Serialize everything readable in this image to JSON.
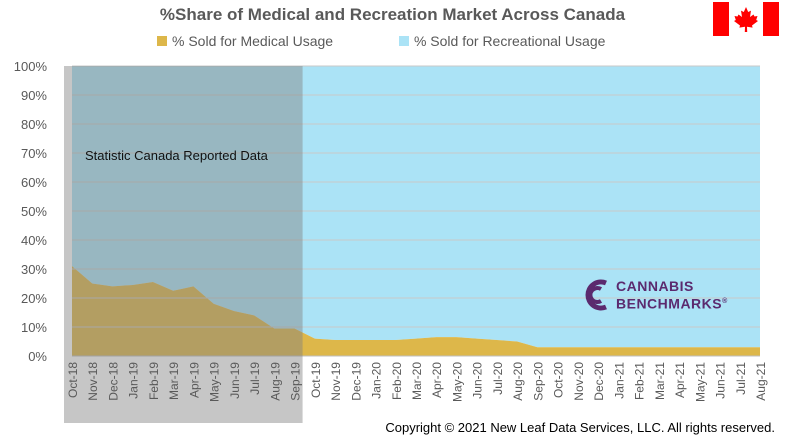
{
  "chart_data": {
    "type": "area",
    "stacked": true,
    "title": "%Share of Medical and Recreation Market Across Canada",
    "categories": [
      "Oct-18",
      "Nov-18",
      "Dec-18",
      "Jan-19",
      "Feb-19",
      "Mar-19",
      "Apr-19",
      "May-19",
      "Jun-19",
      "Jul-19",
      "Aug-19",
      "Sep-19",
      "Oct-19",
      "Nov-19",
      "Dec-19",
      "Jan-20",
      "Feb-20",
      "Mar-20",
      "Apr-20",
      "May-20",
      "Jun-20",
      "Jul-20",
      "Aug-20",
      "Sep-20",
      "Oct-20",
      "Nov-20",
      "Dec-20",
      "Jan-21",
      "Feb-21",
      "Mar-21",
      "Apr-21",
      "May-21",
      "Jun-21",
      "Jul-21",
      "Aug-21"
    ],
    "y_ticks": [
      "0%",
      "10%",
      "20%",
      "30%",
      "40%",
      "50%",
      "60%",
      "70%",
      "80%",
      "90%",
      "100%"
    ],
    "ylim": [
      0,
      100
    ],
    "series": [
      {
        "name": "% Sold for Medical Usage",
        "color": "#ddb74a",
        "values": [
          31,
          25,
          24,
          24.5,
          25.5,
          22.5,
          24,
          18,
          15.5,
          14,
          9.5,
          9.5,
          6,
          5.5,
          5.5,
          5.5,
          5.5,
          6,
          6.5,
          6.5,
          6,
          5.5,
          5,
          3,
          3,
          3,
          3,
          3,
          3,
          3,
          3,
          3,
          3,
          3,
          3
        ]
      },
      {
        "name": "% Sold for Recreational Usage",
        "color": "#abe3f6",
        "values": [
          69,
          75,
          76,
          75.5,
          74.5,
          77.5,
          76,
          82,
          84.5,
          86,
          90.5,
          90.5,
          94,
          94.5,
          94.5,
          94.5,
          94.5,
          94,
          93.5,
          93.5,
          94,
          94.5,
          95,
          97,
          97,
          97,
          97,
          97,
          97,
          97,
          97,
          97,
          97,
          97,
          97
        ]
      }
    ],
    "shaded_region": {
      "from": "Oct-18",
      "to": "Sep-19",
      "label": "Statistic Canada Reported Data",
      "color": "#808080"
    },
    "grid": true,
    "legend": "top"
  },
  "logo": {
    "line1": "CANNABIS",
    "line2": "BENCHMARKS",
    "mark": "®"
  },
  "flag": {
    "icon": "canada-flag-icon",
    "red": "#ff0000"
  },
  "copyright": "Copyright © 2021 New Leaf Data Services, LLC. All rights reserved."
}
